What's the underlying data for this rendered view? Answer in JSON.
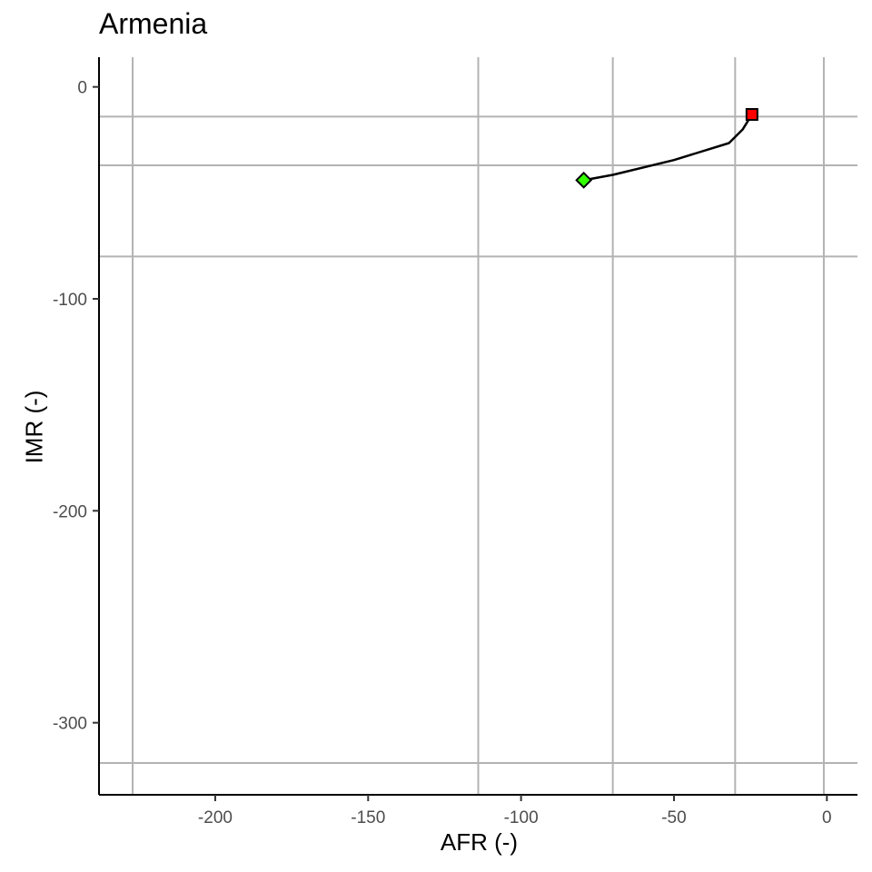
{
  "chart_data": {
    "type": "line",
    "title": "Armenia",
    "xlabel": "AFR (-)",
    "ylabel": "IMR (-)",
    "xlim": [
      -238,
      10
    ],
    "ylim": [
      -334,
      14
    ],
    "x_ticks": [
      -200,
      -150,
      -100,
      -50,
      0
    ],
    "y_ticks": [
      0,
      -100,
      -200,
      -300
    ],
    "x_tick_labels": [
      "-200",
      "-150",
      "-100",
      "-50",
      "0"
    ],
    "y_tick_labels": [
      "0",
      "-100",
      "-200",
      "-300"
    ],
    "reference_lines_x": [
      -227,
      -114,
      -70,
      -30,
      -1
    ],
    "reference_lines_y": [
      -14,
      -37,
      -80,
      -319
    ],
    "grid": false,
    "series": [
      {
        "points": [
          {
            "x": -79.5,
            "y": -44
          },
          {
            "x": -70,
            "y": -41.5
          },
          {
            "x": -50,
            "y": -34.5
          },
          {
            "x": -32,
            "y": -26.5
          },
          {
            "x": -27.5,
            "y": -20
          },
          {
            "x": -24.5,
            "y": -13
          }
        ],
        "color": "#000000"
      }
    ],
    "start_marker": {
      "x": -79.5,
      "y": -44,
      "shape": "diamond",
      "color": "#33ff00"
    },
    "end_marker": {
      "x": -24.5,
      "y": -13,
      "shape": "square",
      "color": "#ff0000"
    }
  }
}
